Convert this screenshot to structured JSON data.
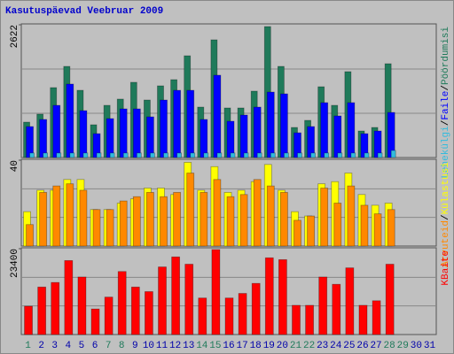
{
  "chart_data": [
    {
      "type": "bar",
      "title": "Kasutuspäevad Veebruar 2009",
      "ylim": [
        0,
        2622
      ],
      "yticks": [
        2622
      ],
      "legend_separator": "/",
      "series": [
        {
          "name": "Pöördumisi",
          "color": "#1f7a5a",
          "values": [
            699,
            857,
            1381,
            1800,
            1328,
            647,
            1031,
            1154,
            1486,
            1136,
            1416,
            1538,
            2010,
            996,
            2325,
            979,
            979,
            1311,
            2587,
            1800,
            594,
            734,
            1398,
            1031,
            1696,
            524,
            594,
            1853,
            null,
            null,
            null
          ]
        },
        {
          "name": "Faile",
          "color": "#0000ff",
          "values": [
            612,
            752,
            1031,
            1451,
            926,
            472,
            769,
            961,
            961,
            804,
            1136,
            1328,
            1328,
            752,
            1626,
            717,
            839,
            996,
            1293,
            1258,
            489,
            612,
            1084,
            822,
            1084,
            472,
            524,
            891,
            null,
            null,
            null
          ]
        },
        {
          "name": "Lehekülgi",
          "color": "#33bbdd",
          "values": [
            90,
            90,
            90,
            90,
            90,
            90,
            90,
            90,
            90,
            90,
            90,
            90,
            90,
            90,
            90,
            90,
            90,
            90,
            90,
            90,
            90,
            90,
            90,
            90,
            90,
            90,
            90,
            140,
            null,
            null,
            null
          ]
        }
      ]
    },
    {
      "type": "bar",
      "ylim": [
        0,
        40
      ],
      "yticks": [
        40
      ],
      "legend_separator": "/",
      "series": [
        {
          "name": "Külastusi",
          "color": "#ffff00",
          "values": [
            16,
            26,
            26,
            31,
            31,
            17,
            17,
            20,
            22,
            27,
            27,
            24,
            39,
            26,
            37,
            25,
            26,
            30,
            38,
            26,
            16,
            14,
            29,
            30,
            34,
            24,
            19,
            20,
            null,
            null,
            null
          ]
        },
        {
          "name": "Arvuteid",
          "color": "#ff8800",
          "values": [
            10,
            25,
            28,
            29,
            26,
            17,
            17,
            21,
            23,
            25,
            23,
            25,
            34,
            25,
            31,
            23,
            24,
            31,
            28,
            25,
            12,
            14,
            27,
            20,
            28,
            19,
            15,
            17,
            null,
            null,
            null
          ]
        }
      ]
    },
    {
      "type": "bar",
      "ylim": [
        0,
        23400
      ],
      "yticks": [
        23400
      ],
      "categories": [
        "1",
        "2",
        "3",
        "4",
        "5",
        "6",
        "7",
        "8",
        "9",
        "10",
        "11",
        "12",
        "13",
        "14",
        "15",
        "16",
        "17",
        "18",
        "19",
        "20",
        "21",
        "22",
        "23",
        "24",
        "25",
        "26",
        "27",
        "28",
        "29",
        "30",
        "31"
      ],
      "category_colors": [
        "#1f7a5a",
        "#0000aa",
        "#0000aa",
        "#0000aa",
        "#0000aa",
        "#0000aa",
        "#1f7a5a",
        "#1f7a5a",
        "#0000aa",
        "#0000aa",
        "#0000aa",
        "#0000aa",
        "#0000aa",
        "#1f7a5a",
        "#1f7a5a",
        "#0000aa",
        "#0000aa",
        "#0000aa",
        "#0000aa",
        "#0000aa",
        "#1f7a5a",
        "#1f7a5a",
        "#0000aa",
        "#0000aa",
        "#0000aa",
        "#0000aa",
        "#0000aa",
        "#1f7a5a",
        "#1f7a5a",
        "#0000aa",
        "#0000aa"
      ],
      "series": [
        {
          "name": "KBaite",
          "color": "#ff0000",
          "values": [
            7719,
            12948,
            14193,
            20169,
            15687,
            6972,
            10209,
            17181,
            12948,
            11703,
            18426,
            21165,
            19173,
            9960,
            23157,
            9960,
            11205,
            13944,
            20916,
            20418,
            7968,
            7968,
            15687,
            13695,
            18177,
            7968,
            9213,
            19173,
            null,
            null,
            null
          ]
        }
      ]
    }
  ]
}
